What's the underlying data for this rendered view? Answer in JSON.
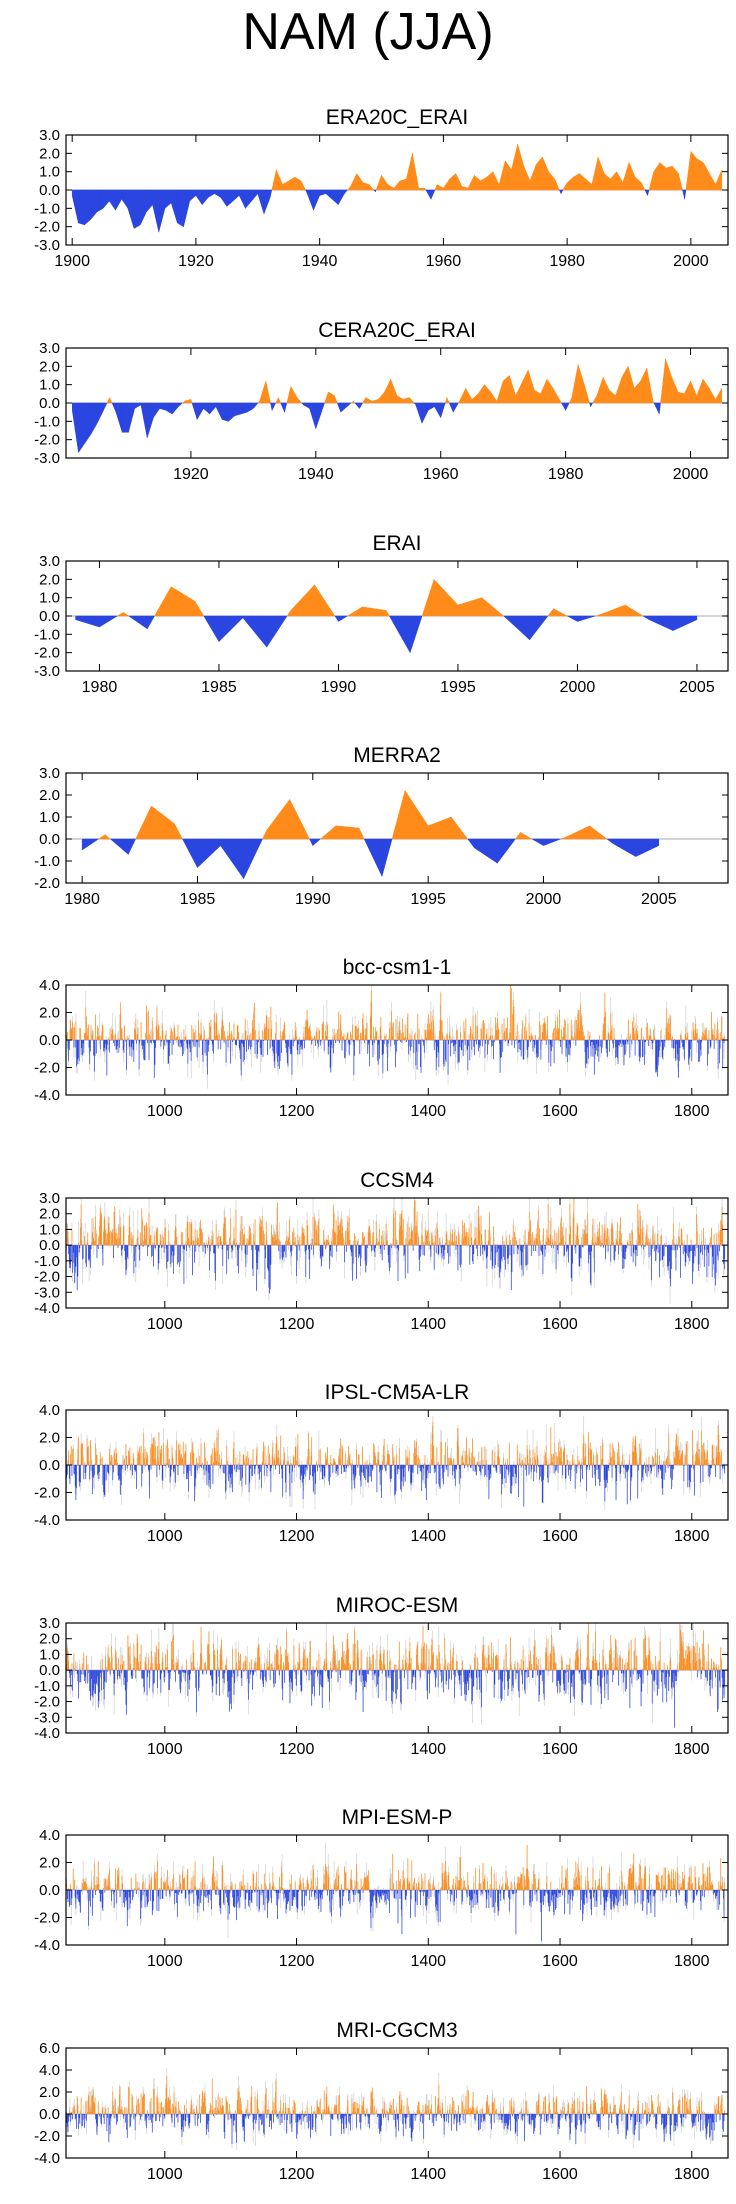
{
  "figure": {
    "title": "NAM (JJA)"
  },
  "colors": {
    "positive": "#ff8c1a",
    "negative": "#2b45e0",
    "zero_line": "#aaaaaa",
    "noise": "#c8c8c8"
  },
  "chart_data": [
    {
      "type": "area",
      "title": "ERA20C_ERAI",
      "xlim": [
        1899,
        2006
      ],
      "ylim": [
        -3.0,
        3.0
      ],
      "yticks": [
        3.0,
        2.0,
        1.0,
        0.0,
        -1.0,
        -2.0,
        -3.0
      ],
      "ytick_labels": [
        "3.0",
        "2.0",
        "1.0",
        "0.0",
        "-1.0",
        "-2.0",
        "-3.0"
      ],
      "xticks": [
        1900,
        1920,
        1940,
        1960,
        1980,
        2000
      ],
      "xtick_labels": [
        "1900",
        "1920",
        "1940",
        "1960",
        "1980",
        "2000"
      ],
      "x": [
        1900,
        1901,
        1902,
        1903,
        1904,
        1905,
        1906,
        1907,
        1908,
        1909,
        1910,
        1911,
        1912,
        1913,
        1914,
        1915,
        1916,
        1917,
        1918,
        1919,
        1920,
        1921,
        1922,
        1923,
        1924,
        1925,
        1926,
        1927,
        1928,
        1929,
        1930,
        1931,
        1932,
        1933,
        1934,
        1935,
        1936,
        1937,
        1938,
        1939,
        1940,
        1941,
        1942,
        1943,
        1944,
        1945,
        1946,
        1947,
        1948,
        1949,
        1950,
        1951,
        1952,
        1953,
        1954,
        1955,
        1956,
        1957,
        1958,
        1959,
        1960,
        1961,
        1962,
        1963,
        1964,
        1965,
        1966,
        1967,
        1968,
        1969,
        1970,
        1971,
        1972,
        1973,
        1974,
        1975,
        1976,
        1977,
        1978,
        1979,
        1980,
        1981,
        1982,
        1983,
        1984,
        1985,
        1986,
        1987,
        1988,
        1989,
        1990,
        1991,
        1992,
        1993,
        1994,
        1995,
        1996,
        1997,
        1998,
        1999,
        2000,
        2001,
        2002,
        2003,
        2004,
        2005
      ],
      "values": [
        -0.3,
        -1.8,
        -1.9,
        -1.6,
        -1.2,
        -1.0,
        -0.6,
        -1.1,
        -0.5,
        -1.0,
        -2.1,
        -1.9,
        -1.2,
        -0.8,
        -2.3,
        -1.0,
        -0.7,
        -1.8,
        -2.0,
        -0.6,
        -0.3,
        -0.8,
        -0.4,
        -0.2,
        -0.4,
        -0.9,
        -0.6,
        -0.3,
        -1.0,
        -0.6,
        -0.2,
        -1.3,
        -0.4,
        1.1,
        0.3,
        0.5,
        0.7,
        0.5,
        -0.2,
        -1.1,
        -0.3,
        -0.2,
        -0.5,
        -0.8,
        -0.2,
        0.2,
        0.9,
        0.4,
        0.3,
        -0.1,
        0.8,
        0.3,
        0.1,
        0.5,
        0.6,
        2.0,
        0.1,
        0.1,
        -0.5,
        0.3,
        0.1,
        0.6,
        0.9,
        0.2,
        0.1,
        0.8,
        0.5,
        0.7,
        1.0,
        0.3,
        1.6,
        1.1,
        2.5,
        1.3,
        0.5,
        1.4,
        1.8,
        1.0,
        0.6,
        -0.2,
        0.4,
        0.7,
        0.9,
        0.6,
        0.3,
        1.8,
        0.9,
        0.6,
        1.0,
        0.4,
        1.5,
        0.7,
        0.4,
        -0.3,
        1.0,
        1.5,
        1.2,
        1.3,
        0.9,
        -0.5,
        2.1,
        1.7,
        1.5,
        0.9,
        0.3,
        1.1
      ]
    },
    {
      "type": "area",
      "title": "CERA20C_ERAI",
      "xlim": [
        1900,
        2006
      ],
      "ylim": [
        -3.0,
        3.0
      ],
      "yticks": [
        3.0,
        2.0,
        1.0,
        0.0,
        -1.0,
        -2.0,
        -3.0
      ],
      "ytick_labels": [
        "3.0",
        "2.0",
        "1.0",
        "0.0",
        "-1.0",
        "-2.0",
        "-3.0"
      ],
      "xticks": [
        1920,
        1940,
        1960,
        1980,
        2000
      ],
      "xtick_labels": [
        "1920",
        "1940",
        "1960",
        "1980",
        "2000"
      ],
      "x": [
        1901,
        1902,
        1903,
        1904,
        1905,
        1906,
        1907,
        1908,
        1909,
        1910,
        1911,
        1912,
        1913,
        1914,
        1915,
        1916,
        1917,
        1918,
        1919,
        1920,
        1921,
        1922,
        1923,
        1924,
        1925,
        1926,
        1927,
        1928,
        1929,
        1930,
        1931,
        1932,
        1933,
        1934,
        1935,
        1936,
        1937,
        1938,
        1939,
        1940,
        1941,
        1942,
        1943,
        1944,
        1945,
        1946,
        1947,
        1948,
        1949,
        1950,
        1951,
        1952,
        1953,
        1954,
        1955,
        1956,
        1957,
        1958,
        1959,
        1960,
        1961,
        1962,
        1963,
        1964,
        1965,
        1966,
        1967,
        1968,
        1969,
        1970,
        1971,
        1972,
        1973,
        1974,
        1975,
        1976,
        1977,
        1978,
        1979,
        1980,
        1981,
        1982,
        1983,
        1984,
        1985,
        1986,
        1987,
        1988,
        1989,
        1990,
        1991,
        1992,
        1993,
        1994,
        1995,
        1996,
        1997,
        1998,
        1999,
        2000,
        2001,
        2002,
        2003,
        2004,
        2005
      ],
      "values": [
        -0.4,
        -2.7,
        -2.2,
        -1.7,
        -1.1,
        -0.4,
        0.3,
        -0.5,
        -1.6,
        -1.6,
        -0.3,
        -0.1,
        -1.9,
        -0.8,
        -0.3,
        -0.4,
        -0.6,
        -0.2,
        0.1,
        0.2,
        -0.9,
        -0.3,
        -0.6,
        -0.2,
        -0.9,
        -1.0,
        -0.7,
        -0.6,
        -0.5,
        -0.3,
        0.1,
        1.2,
        -0.4,
        0.3,
        -0.5,
        0.9,
        0.3,
        -0.1,
        -0.3,
        -1.4,
        -0.4,
        0.6,
        0.4,
        -0.5,
        -0.2,
        0.1,
        -0.3,
        0.3,
        0.1,
        0.2,
        0.6,
        1.3,
        0.4,
        0.2,
        0.3,
        -0.1,
        -1.1,
        -0.4,
        -0.2,
        -0.8,
        0.3,
        -0.5,
        0.1,
        0.8,
        0.2,
        0.5,
        1.0,
        0.6,
        0.1,
        1.2,
        1.5,
        0.4,
        1.1,
        1.8,
        0.7,
        0.5,
        1.3,
        0.8,
        0.2,
        -0.4,
        0.3,
        2.1,
        1.0,
        -0.2,
        0.4,
        1.4,
        0.7,
        0.4,
        1.4,
        2.0,
        0.8,
        1.2,
        1.9,
        0.1,
        -0.6,
        2.4,
        1.4,
        0.6,
        0.5,
        1.2,
        0.4,
        1.3,
        0.8,
        0.2,
        0.8
      ]
    },
    {
      "type": "area",
      "title": "ERAI",
      "xlim": [
        1978.6,
        2006.3
      ],
      "ylim": [
        -3.0,
        3.0
      ],
      "yticks": [
        3.0,
        2.0,
        1.0,
        0.0,
        -1.0,
        -2.0,
        -3.0
      ],
      "ytick_labels": [
        "3.0",
        "2.0",
        "1.0",
        "0.0",
        "-1.0",
        "-2.0",
        "-3.0"
      ],
      "xticks": [
        1980,
        1985,
        1990,
        1995,
        2000,
        2005
      ],
      "xtick_labels": [
        "1980",
        "1985",
        "1990",
        "1995",
        "2000",
        "2005"
      ],
      "x": [
        1979,
        1980,
        1981,
        1982,
        1983,
        1984,
        1985,
        1986,
        1987,
        1988,
        1989,
        1990,
        1991,
        1992,
        1993,
        1994,
        1995,
        1996,
        1997,
        1998,
        1999,
        2000,
        2001,
        2002,
        2003,
        2004,
        2005
      ],
      "values": [
        -0.2,
        -0.6,
        0.2,
        -0.7,
        1.6,
        0.8,
        -1.4,
        -0.1,
        -1.7,
        0.3,
        1.7,
        -0.3,
        0.5,
        0.3,
        -2.0,
        2.0,
        0.6,
        1.0,
        -0.1,
        -1.3,
        0.4,
        -0.3,
        0.1,
        0.6,
        -0.2,
        -0.8,
        -0.2
      ]
    },
    {
      "type": "area",
      "title": "MERRA2",
      "xlim": [
        1979.3,
        2008
      ],
      "ylim": [
        -2.0,
        3.0
      ],
      "yticks": [
        3.0,
        2.0,
        1.0,
        0.0,
        -1.0,
        -2.0
      ],
      "ytick_labels": [
        "3.0",
        "2.0",
        "1.0",
        "0.0",
        "-1.0",
        "-2.0"
      ],
      "xticks": [
        1980,
        1985,
        1990,
        1995,
        2000,
        2005
      ],
      "xtick_labels": [
        "1980",
        "1985",
        "1990",
        "1995",
        "2000",
        "2005"
      ],
      "x": [
        1980,
        1981,
        1982,
        1983,
        1984,
        1985,
        1986,
        1987,
        1988,
        1989,
        1990,
        1991,
        1992,
        1993,
        1994,
        1995,
        1996,
        1997,
        1998,
        1999,
        2000,
        2001,
        2002,
        2003,
        2004,
        2005
      ],
      "values": [
        -0.5,
        0.2,
        -0.7,
        1.5,
        0.7,
        -1.3,
        -0.3,
        -1.8,
        0.4,
        1.8,
        -0.3,
        0.6,
        0.5,
        -1.7,
        2.2,
        0.6,
        1.0,
        -0.4,
        -1.1,
        0.3,
        -0.3,
        0.1,
        0.6,
        -0.2,
        -0.8,
        -0.3
      ]
    },
    {
      "type": "bar",
      "title": "bcc-csm1-1",
      "xlim": [
        850,
        1855
      ],
      "ylim": [
        -4.0,
        4.0
      ],
      "yticks": [
        4.0,
        2.0,
        0.0,
        -2.0,
        -4.0
      ],
      "ytick_labels": [
        "4.0",
        "2.0",
        "0.0",
        "-2.0",
        "-4.0"
      ],
      "xticks": [
        1000,
        1200,
        1400,
        1600,
        1800
      ],
      "xtick_labels": [
        "1000",
        "1200",
        "1400",
        "1600",
        "1800"
      ],
      "series_span": [
        850,
        1850
      ],
      "amplitude_sd": 1.0,
      "seed": 11
    },
    {
      "type": "bar",
      "title": "CCSM4",
      "xlim": [
        850,
        1855
      ],
      "ylim": [
        -4.0,
        3.0
      ],
      "yticks": [
        3.0,
        2.0,
        1.0,
        0.0,
        -1.0,
        -2.0,
        -3.0,
        -4.0
      ],
      "ytick_labels": [
        "3.0",
        "2.0",
        "1.0",
        "0.0",
        "-1.0",
        "-2.0",
        "-3.0",
        "-4.0"
      ],
      "xticks": [
        1000,
        1200,
        1400,
        1600,
        1800
      ],
      "xtick_labels": [
        "1000",
        "1200",
        "1400",
        "1600",
        "1800"
      ],
      "series_span": [
        850,
        1850
      ],
      "amplitude_sd": 1.0,
      "seed": 23
    },
    {
      "type": "bar",
      "title": "IPSL-CM5A-LR",
      "xlim": [
        850,
        1855
      ],
      "ylim": [
        -4.0,
        4.0
      ],
      "yticks": [
        4.0,
        2.0,
        0.0,
        -2.0,
        -4.0
      ],
      "ytick_labels": [
        "4.0",
        "2.0",
        "0.0",
        "-2.0",
        "-4.0"
      ],
      "xticks": [
        1000,
        1200,
        1400,
        1600,
        1800
      ],
      "xtick_labels": [
        "1000",
        "1200",
        "1400",
        "1600",
        "1800"
      ],
      "series_span": [
        850,
        1850
      ],
      "amplitude_sd": 1.0,
      "seed": 37
    },
    {
      "type": "bar",
      "title": "MIROC-ESM",
      "xlim": [
        850,
        1855
      ],
      "ylim": [
        -4.0,
        3.0
      ],
      "yticks": [
        3.0,
        2.0,
        1.0,
        0.0,
        -1.0,
        -2.0,
        -3.0,
        -4.0
      ],
      "ytick_labels": [
        "3.0",
        "2.0",
        "1.0",
        "0.0",
        "-1.0",
        "-2.0",
        "-3.0",
        "-4.0"
      ],
      "xticks": [
        1000,
        1200,
        1400,
        1600,
        1800
      ],
      "xtick_labels": [
        "1000",
        "1200",
        "1400",
        "1600",
        "1800"
      ],
      "series_span": [
        850,
        1850
      ],
      "amplitude_sd": 1.0,
      "seed": 41
    },
    {
      "type": "bar",
      "title": "MPI-ESM-P",
      "xlim": [
        850,
        1855
      ],
      "ylim": [
        -4.0,
        4.0
      ],
      "yticks": [
        4.0,
        2.0,
        0.0,
        -2.0,
        -4.0
      ],
      "ytick_labels": [
        "4.0",
        "2.0",
        "0.0",
        "-2.0",
        "-4.0"
      ],
      "xticks": [
        1000,
        1200,
        1400,
        1600,
        1800
      ],
      "xtick_labels": [
        "1000",
        "1200",
        "1400",
        "1600",
        "1800"
      ],
      "series_span": [
        850,
        1850
      ],
      "amplitude_sd": 1.0,
      "seed": 53
    },
    {
      "type": "bar",
      "title": "MRI-CGCM3",
      "xlim": [
        850,
        1855
      ],
      "ylim": [
        -4.0,
        6.0
      ],
      "yticks": [
        6.0,
        4.0,
        2.0,
        0.0,
        -2.0,
        -4.0
      ],
      "ytick_labels": [
        "6.0",
        "4.0",
        "2.0",
        "0.0",
        "-2.0",
        "-4.0"
      ],
      "xticks": [
        1000,
        1200,
        1400,
        1600,
        1800
      ],
      "xtick_labels": [
        "1000",
        "1200",
        "1400",
        "1600",
        "1800"
      ],
      "series_span": [
        850,
        1850
      ],
      "amplitude_sd": 1.0,
      "seed": 67
    }
  ]
}
